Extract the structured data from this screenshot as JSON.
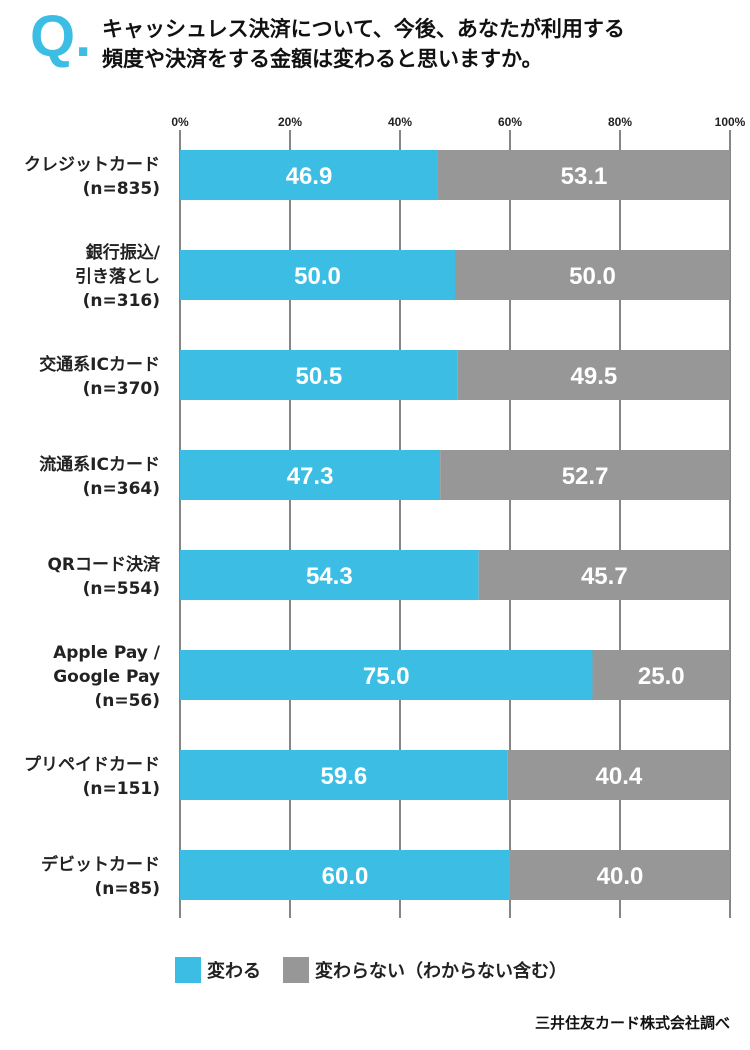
{
  "header": {
    "q_letter": "Q",
    "q_dot": ".",
    "question_line1": "キャッシュレス決済について、今後、あなたが利用する",
    "question_line2": "頻度や決済をする金額は変わると思いますか。"
  },
  "colors": {
    "accent": "#3bbde4",
    "changes": "#3bbde4",
    "no_change": "#979797"
  },
  "chart_data": {
    "type": "bar",
    "orientation": "horizontal",
    "stacked": true,
    "percent": true,
    "xlim": [
      0,
      100
    ],
    "x_ticks": [
      "0%",
      "20%",
      "40%",
      "60%",
      "80%",
      "100%"
    ],
    "tick_values": [
      0,
      20,
      40,
      60,
      80,
      100
    ],
    "grid": true,
    "legend_position": "bottom-left",
    "categories": [
      {
        "lines": [
          "クレジットカード",
          "(n=835)"
        ]
      },
      {
        "lines": [
          "銀行振込/",
          "引き落とし",
          "(n=316)"
        ]
      },
      {
        "lines": [
          "交通系ICカード",
          "(n=370)"
        ]
      },
      {
        "lines": [
          "流通系ICカード",
          "(n=364)"
        ]
      },
      {
        "lines": [
          "QRコード決済",
          "(n=554)"
        ]
      },
      {
        "lines": [
          "Apple Pay /",
          "Google Pay",
          "(n=56)"
        ]
      },
      {
        "lines": [
          "プリペイドカード",
          "(n=151)"
        ]
      },
      {
        "lines": [
          "デビットカード",
          "(n=85)"
        ]
      }
    ],
    "series": [
      {
        "name": "変わる",
        "color": "#3bbde4",
        "values": [
          46.9,
          50.0,
          50.5,
          47.3,
          54.3,
          75.0,
          59.6,
          60.0
        ],
        "labels": [
          "46.9",
          "50.0",
          "50.5",
          "47.3",
          "54.3",
          "75.0",
          "59.6",
          "60.0"
        ]
      },
      {
        "name": "変わらない（わからない含む）",
        "color": "#979797",
        "values": [
          53.1,
          50.0,
          49.5,
          52.7,
          45.7,
          25.0,
          40.4,
          40.0
        ],
        "labels": [
          "53.1",
          "50.0",
          "49.5",
          "52.7",
          "45.7",
          "25.0",
          "40.4",
          "40.0"
        ]
      }
    ]
  },
  "source": "三井住友カード株式会社調べ"
}
